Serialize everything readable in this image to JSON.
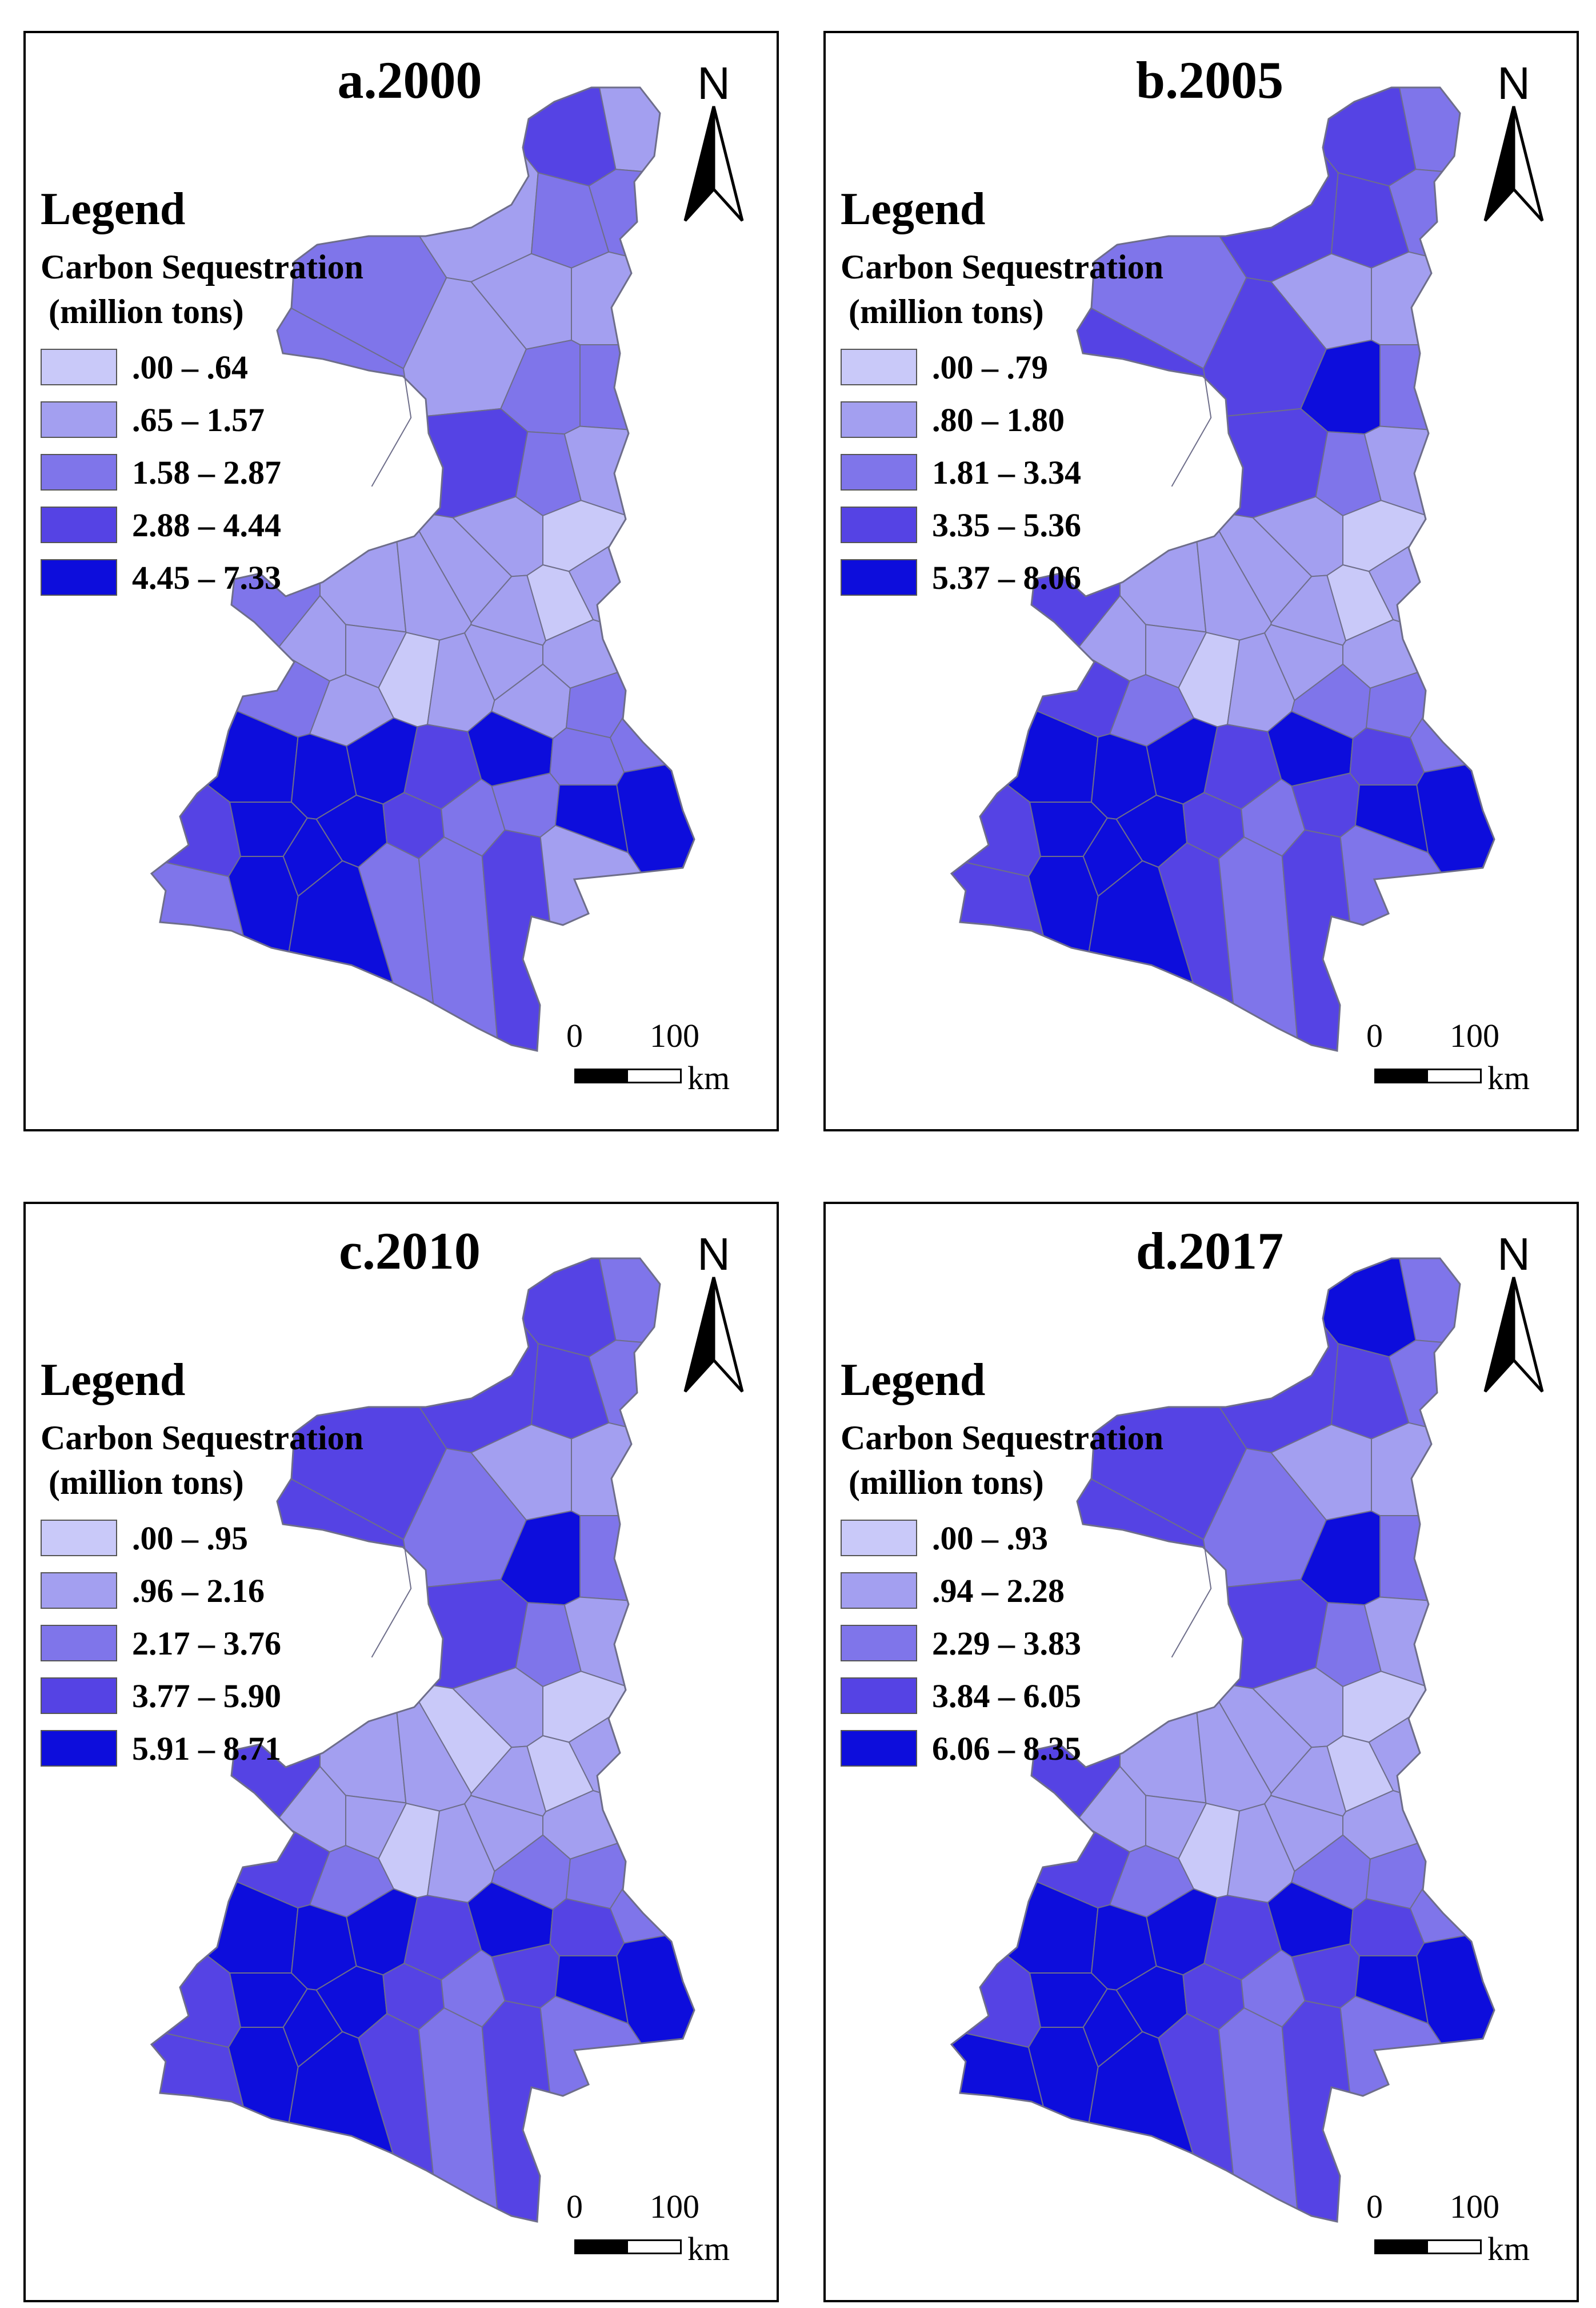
{
  "legend_heading": "Legend",
  "legend_subtitle_line1": "Carbon Sequestration",
  "legend_subtitle_line2": "(million tons)",
  "class_colors": [
    "#c9c9f9",
    "#a39ff0",
    "#7f75ea",
    "#5543e4",
    "#0d0ddc"
  ],
  "boundary_color": "#6e6e8a",
  "north_label": "N",
  "scale": {
    "start": "0",
    "end": "100",
    "unit": "km"
  },
  "panels": [
    {
      "title": "a.2000",
      "classes": [
        ".00 – .64",
        ".65 – 1.57",
        "1.58 – 2.87",
        "2.88 – 4.44",
        "4.45 – 7.33"
      ],
      "region_classes": [
        3,
        1,
        1,
        2,
        2,
        2,
        1,
        1,
        2,
        1,
        2,
        2,
        3,
        2,
        1,
        1,
        0,
        1,
        1,
        1,
        1,
        1,
        0,
        1,
        1,
        1,
        1,
        0,
        1,
        1,
        2,
        2,
        2,
        2,
        1,
        4,
        4,
        4,
        3,
        4,
        2,
        4,
        3,
        4,
        4,
        4,
        3,
        2,
        2,
        4,
        2,
        4,
        4,
        2,
        2,
        3,
        1
      ]
    },
    {
      "title": "b.2005",
      "classes": [
        ".00 – .79",
        ".80 – 1.80",
        "1.81 – 3.34",
        "3.35 – 5.36",
        "5.37 – 8.06"
      ],
      "region_classes": [
        3,
        2,
        3,
        3,
        2,
        2,
        1,
        1,
        3,
        3,
        4,
        2,
        3,
        2,
        1,
        1,
        0,
        1,
        1,
        1,
        1,
        1,
        0,
        1,
        1,
        1,
        1,
        0,
        1,
        2,
        2,
        2,
        3,
        3,
        2,
        4,
        4,
        4,
        3,
        4,
        3,
        4,
        3,
        4,
        4,
        4,
        3,
        2,
        3,
        4,
        3,
        4,
        4,
        3,
        2,
        3,
        2
      ]
    },
    {
      "title": "c.2010",
      "classes": [
        ".00 – .95",
        ".96 – 2.16",
        "2.17 – 3.76",
        "3.77 – 5.90",
        "5.91 – 8.71"
      ],
      "region_classes": [
        3,
        2,
        3,
        3,
        2,
        3,
        1,
        1,
        3,
        2,
        4,
        2,
        3,
        2,
        1,
        1,
        0,
        1,
        1,
        1,
        0,
        1,
        0,
        1,
        1,
        1,
        1,
        0,
        1,
        2,
        2,
        2,
        3,
        3,
        2,
        4,
        4,
        4,
        3,
        4,
        3,
        4,
        3,
        4,
        4,
        4,
        3,
        2,
        3,
        4,
        3,
        4,
        4,
        3,
        2,
        3,
        2
      ]
    },
    {
      "title": "d.2017",
      "classes": [
        ".00 – .93",
        ".94 – 2.28",
        "2.29 – 3.83",
        "3.84 – 6.05",
        "6.06 – 8.35"
      ],
      "region_classes": [
        4,
        2,
        3,
        3,
        2,
        3,
        1,
        1,
        3,
        2,
        4,
        2,
        3,
        2,
        1,
        1,
        0,
        1,
        1,
        1,
        1,
        1,
        0,
        1,
        1,
        1,
        1,
        0,
        1,
        2,
        2,
        2,
        3,
        3,
        2,
        4,
        4,
        4,
        3,
        4,
        3,
        4,
        3,
        4,
        4,
        4,
        3,
        2,
        3,
        4,
        4,
        4,
        4,
        3,
        2,
        3,
        2
      ]
    }
  ]
}
